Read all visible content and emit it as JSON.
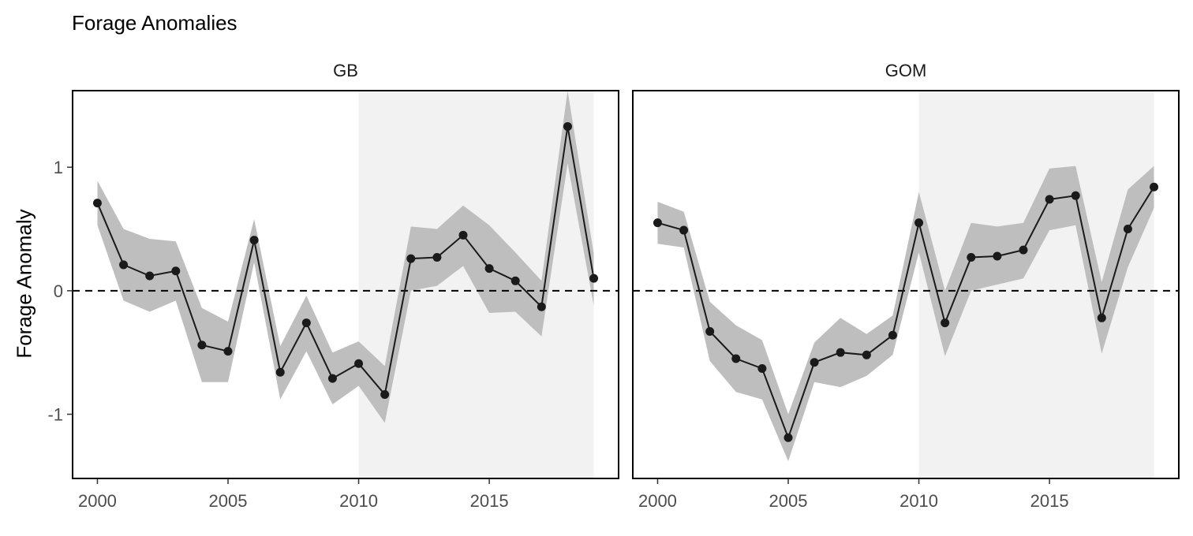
{
  "chart_data": {
    "type": "line",
    "title": "Forage Anomalies",
    "ylabel": "Forage Anomaly",
    "xlabel": "",
    "ylim": [
      -1.52,
      1.62
    ],
    "xlim": [
      1999.05,
      2019.95
    ],
    "x_ticks": [
      2000,
      2005,
      2010,
      2015
    ],
    "y_ticks": [
      -1,
      0,
      1
    ],
    "y_tick_labels": [
      "-1",
      "0",
      "1"
    ],
    "reference_line": 0,
    "highlight_range": [
      2010,
      2019
    ],
    "colors": {
      "line": "#1a1a1a",
      "ribbon": "#bebebe",
      "highlight": "#f2f2f2"
    },
    "grid": false,
    "x": [
      2000,
      2001,
      2002,
      2003,
      2004,
      2005,
      2006,
      2007,
      2008,
      2009,
      2010,
      2011,
      2012,
      2013,
      2014,
      2015,
      2016,
      2017,
      2018,
      2019
    ],
    "panels": [
      {
        "name": "GB",
        "values": [
          0.71,
          0.21,
          0.12,
          0.16,
          -0.44,
          -0.49,
          0.41,
          -0.66,
          -0.26,
          -0.71,
          -0.59,
          -0.84,
          0.26,
          0.27,
          0.45,
          0.18,
          0.08,
          -0.13,
          1.33,
          0.1
        ],
        "upper": [
          0.89,
          0.5,
          0.42,
          0.4,
          -0.14,
          -0.25,
          0.58,
          -0.45,
          -0.04,
          -0.5,
          -0.41,
          -0.61,
          0.52,
          0.5,
          0.69,
          0.53,
          0.31,
          0.08,
          1.62,
          0.3
        ],
        "lower": [
          0.53,
          -0.08,
          -0.17,
          -0.08,
          -0.74,
          -0.74,
          0.23,
          -0.88,
          -0.49,
          -0.92,
          -0.77,
          -1.07,
          0.0,
          0.04,
          0.2,
          -0.18,
          -0.17,
          -0.37,
          1.03,
          -0.12
        ]
      },
      {
        "name": "GOM",
        "values": [
          0.55,
          0.49,
          -0.33,
          -0.55,
          -0.63,
          -1.19,
          -0.58,
          -0.5,
          -0.52,
          -0.36,
          0.55,
          -0.26,
          0.27,
          0.28,
          0.33,
          0.74,
          0.77,
          -0.22,
          0.5,
          0.84
        ],
        "upper": [
          0.72,
          0.64,
          -0.09,
          -0.28,
          -0.4,
          -1.0,
          -0.42,
          -0.22,
          -0.35,
          -0.2,
          0.8,
          0.0,
          0.55,
          0.52,
          0.55,
          0.99,
          1.01,
          0.07,
          0.82,
          1.01
        ],
        "lower": [
          0.38,
          0.35,
          -0.57,
          -0.82,
          -0.88,
          -1.38,
          -0.74,
          -0.78,
          -0.69,
          -0.52,
          0.31,
          -0.53,
          0.0,
          0.05,
          0.1,
          0.49,
          0.53,
          -0.51,
          0.19,
          0.67
        ]
      }
    ]
  }
}
